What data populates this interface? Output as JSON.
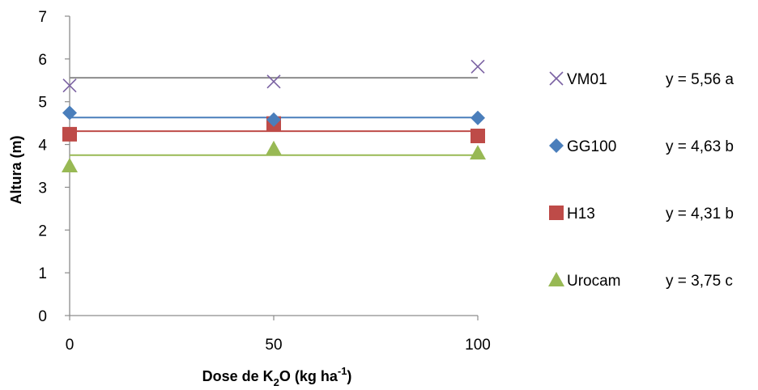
{
  "chart_data": {
    "type": "scatter",
    "title": "",
    "xlabel_prefix": "Dose de K",
    "xlabel_sub": "2",
    "xlabel_mid": "O (kg ha",
    "xlabel_sup": "-1",
    "xlabel_end": ")",
    "ylabel": "Altura (m)",
    "x": [
      0,
      50,
      100
    ],
    "xticks": [
      "0",
      "50",
      "100"
    ],
    "yticks": [
      "0",
      "1",
      "2",
      "3",
      "4",
      "5",
      "6",
      "7"
    ],
    "xlim": [
      0,
      100
    ],
    "ylim": [
      0,
      7
    ],
    "grid": false,
    "legend_position": "right",
    "series": [
      {
        "name": "VM01",
        "values": [
          5.38,
          5.47,
          5.82
        ],
        "fit": 5.56,
        "equation": "y = 5,56 a",
        "color": "#7b62a3",
        "marker": "x"
      },
      {
        "name": "GG100",
        "values": [
          4.74,
          4.58,
          4.62
        ],
        "fit": 4.63,
        "equation": "y = 4,63 b",
        "color": "#4a7ebb",
        "marker": "diamond"
      },
      {
        "name": "H13",
        "values": [
          4.24,
          4.49,
          4.2
        ],
        "fit": 4.31,
        "equation": "y = 4,31 b",
        "color": "#be4b48",
        "marker": "square"
      },
      {
        "name": "Urocam",
        "values": [
          3.5,
          3.9,
          3.8
        ],
        "fit": 3.75,
        "equation": "y = 3,75 c",
        "color": "#98b954",
        "marker": "triangle"
      }
    ],
    "fit_line_colors": [
      "#8c8c8c",
      "#4a7ebb",
      "#be4b48",
      "#98b954"
    ]
  }
}
